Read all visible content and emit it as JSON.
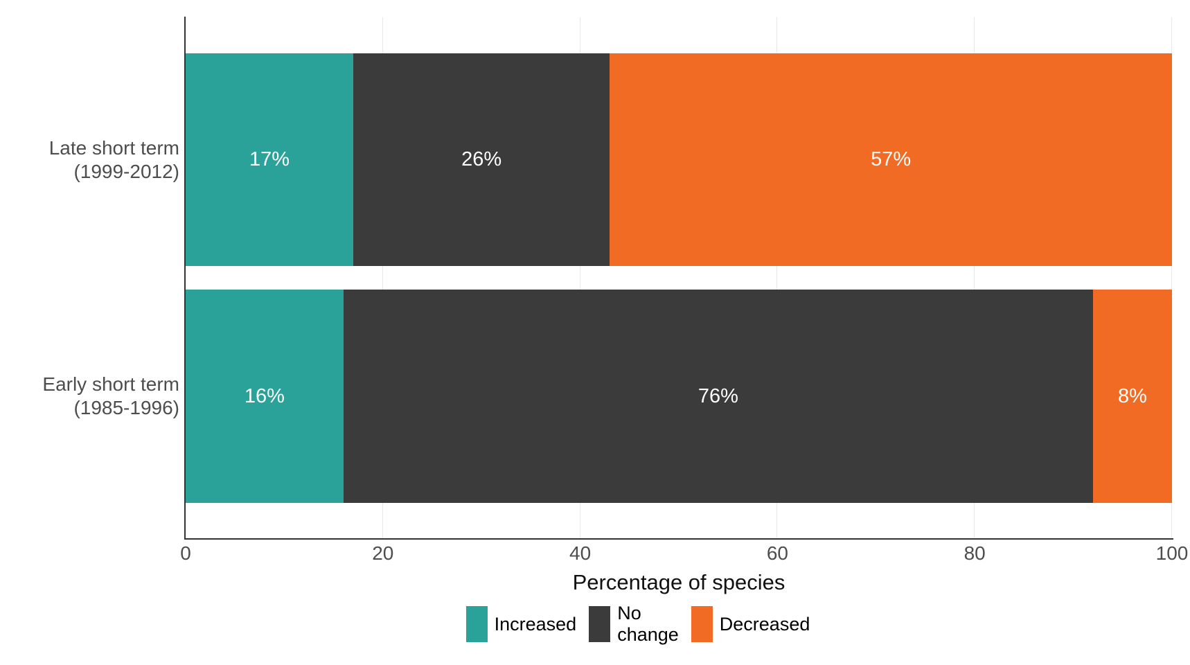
{
  "chart_data": {
    "type": "bar",
    "orientation": "horizontal",
    "stacked": true,
    "title": "",
    "xlabel": "Percentage of species",
    "ylabel": "",
    "xlim": [
      0,
      100
    ],
    "xticks": [
      0,
      20,
      40,
      60,
      80,
      100
    ],
    "grid": "major-vertical-only",
    "legend_position": "bottom",
    "categories": [
      "Late short term\n(1999-2012)",
      "Early short term\n(1985-1996)"
    ],
    "series": [
      {
        "name": "Increased",
        "color": "#2aa29a",
        "values": [
          17,
          16
        ]
      },
      {
        "name": "No change",
        "color": "#3b3b3b",
        "values": [
          26,
          76
        ]
      },
      {
        "name": "Decreased",
        "color": "#f26b24",
        "values": [
          57,
          8
        ]
      }
    ],
    "bar_labels": [
      [
        "17%",
        "26%",
        "57%"
      ],
      [
        "16%",
        "76%",
        "8%"
      ]
    ]
  },
  "colors": {
    "background": "#ffffff",
    "axis_line": "#333333",
    "gridline": "#e8e8e8",
    "tick_text": "#4d4d4d",
    "category_text": "#4d4d4d",
    "title_text": "#111111",
    "bar_value_text": "#ffffff"
  }
}
